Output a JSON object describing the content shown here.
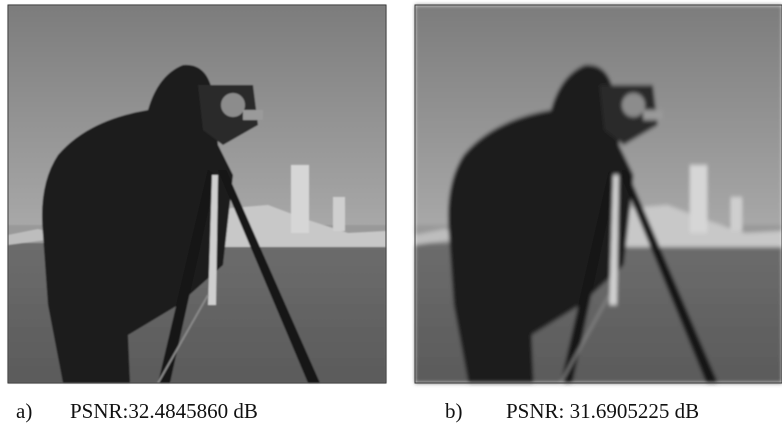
{
  "figures": [
    {
      "label": "a)",
      "caption": "PSNR:32.4845860 dB"
    },
    {
      "label": "b)",
      "caption": "PSNR: 31.6905225 dB"
    }
  ]
}
